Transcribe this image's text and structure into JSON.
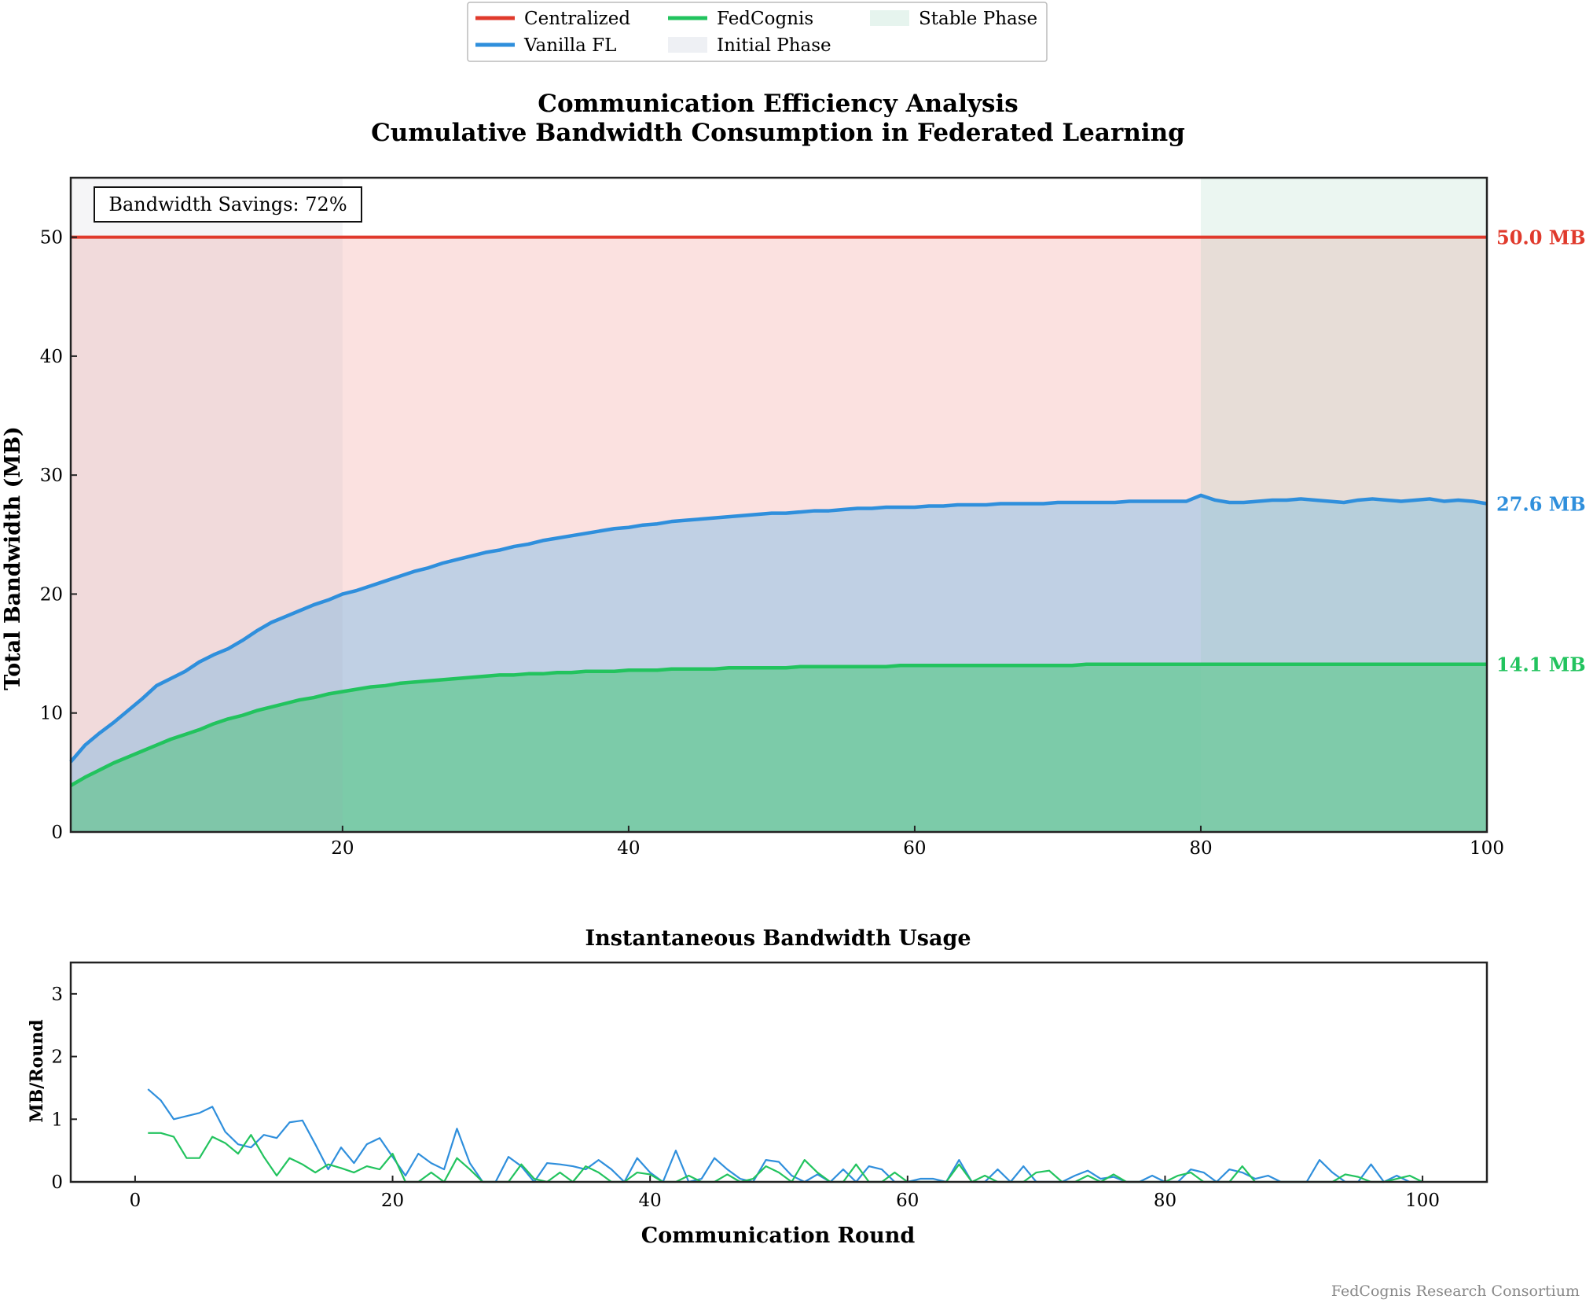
{
  "legend": {
    "items": [
      {
        "label": "Centralized",
        "kind": "line",
        "color": "#e03a2c"
      },
      {
        "label": "Vanilla FL",
        "kind": "line",
        "color": "#2f8fdc"
      },
      {
        "label": "FedCognis",
        "kind": "line",
        "color": "#22c35e"
      },
      {
        "label": "Initial Phase",
        "kind": "patch",
        "color": "#eef0f4"
      },
      {
        "label": "Stable Phase",
        "kind": "patch",
        "color": "#e6f4ee"
      }
    ]
  },
  "footer": "FedCognis Research Consortium",
  "colors": {
    "centralized": "#e03a2c",
    "vanilla": "#2f8fdc",
    "fedcognis": "#22c35e",
    "centralized_fill": "#fbe1e0",
    "vanilla_fill": "#c0d0e4",
    "fedcognis_fill": "#7ccba9",
    "initial_phase": "#eef0f4",
    "stable_phase": "#e6f4ee"
  },
  "chart_data": [
    {
      "type": "area",
      "title": "Communication Efficiency Analysis\nCumulative Bandwidth Consumption in Federated Learning",
      "title_lines": [
        "Communication Efficiency Analysis",
        "Cumulative Bandwidth Consumption in Federated Learning"
      ],
      "xlabel": "",
      "ylabel": "Total Bandwidth (MB)",
      "xlim": [
        1,
        100
      ],
      "ylim": [
        0,
        55
      ],
      "xticks": [
        20,
        40,
        60,
        80,
        100
      ],
      "yticks": [
        0,
        10,
        20,
        30,
        40,
        50
      ],
      "grid": false,
      "legend_position": "top-center",
      "annotation": "Bandwidth Savings: 72%",
      "phases": [
        {
          "name": "Initial Phase",
          "x": [
            1,
            20
          ]
        },
        {
          "name": "Stable Phase",
          "x": [
            80,
            100
          ]
        }
      ],
      "end_labels": [
        "50.0 MB",
        "27.6 MB",
        "14.1 MB"
      ],
      "series": [
        {
          "name": "Centralized",
          "constant": 50.0
        },
        {
          "name": "Vanilla FL",
          "values": [
            5.9,
            7.3,
            8.3,
            9.2,
            10.2,
            11.2,
            12.3,
            12.9,
            13.5,
            14.3,
            14.9,
            15.4,
            16.1,
            16.9,
            17.6,
            18.1,
            18.6,
            19.1,
            19.5,
            20.0,
            20.3,
            20.7,
            21.1,
            21.5,
            21.9,
            22.2,
            22.6,
            22.9,
            23.2,
            23.5,
            23.7,
            24.0,
            24.2,
            24.5,
            24.7,
            24.9,
            25.1,
            25.3,
            25.5,
            25.6,
            25.8,
            25.9,
            26.1,
            26.2,
            26.3,
            26.4,
            26.5,
            26.6,
            26.7,
            26.8,
            26.8,
            26.9,
            27.0,
            27.0,
            27.1,
            27.2,
            27.2,
            27.3,
            27.3,
            27.3,
            27.4,
            27.4,
            27.5,
            27.5,
            27.5,
            27.6,
            27.6,
            27.6,
            27.6,
            27.7,
            27.7,
            27.7,
            27.7,
            27.7,
            27.8,
            27.8,
            27.8,
            27.8,
            27.8,
            28.3,
            27.9,
            27.7,
            27.7,
            27.8,
            27.9,
            27.9,
            28.0,
            27.9,
            27.8,
            27.7,
            27.9,
            28.0,
            27.9,
            27.8,
            27.9,
            28.0,
            27.8,
            27.9,
            27.8,
            27.6
          ]
        },
        {
          "name": "FedCognis",
          "values": [
            3.9,
            4.6,
            5.2,
            5.8,
            6.3,
            6.8,
            7.3,
            7.8,
            8.2,
            8.6,
            9.1,
            9.5,
            9.8,
            10.2,
            10.5,
            10.8,
            11.1,
            11.3,
            11.6,
            11.8,
            12.0,
            12.2,
            12.3,
            12.5,
            12.6,
            12.7,
            12.8,
            12.9,
            13.0,
            13.1,
            13.2,
            13.2,
            13.3,
            13.3,
            13.4,
            13.4,
            13.5,
            13.5,
            13.5,
            13.6,
            13.6,
            13.6,
            13.7,
            13.7,
            13.7,
            13.7,
            13.8,
            13.8,
            13.8,
            13.8,
            13.8,
            13.9,
            13.9,
            13.9,
            13.9,
            13.9,
            13.9,
            13.9,
            14.0,
            14.0,
            14.0,
            14.0,
            14.0,
            14.0,
            14.0,
            14.0,
            14.0,
            14.0,
            14.0,
            14.0,
            14.0,
            14.1,
            14.1,
            14.1,
            14.1,
            14.1,
            14.1,
            14.1,
            14.1,
            14.1,
            14.1,
            14.1,
            14.1,
            14.1,
            14.1,
            14.1,
            14.1,
            14.1,
            14.1,
            14.1,
            14.1,
            14.1,
            14.1,
            14.1,
            14.1,
            14.1,
            14.1,
            14.1,
            14.1,
            14.1
          ]
        }
      ]
    },
    {
      "type": "line",
      "title": "Instantaneous Bandwidth Usage",
      "xlabel": "Communication Round",
      "ylabel": "MB/Round",
      "xlim": [
        -5,
        105
      ],
      "ylim": [
        0,
        3.5
      ],
      "xticks": [
        0,
        20,
        40,
        60,
        80,
        100
      ],
      "yticks": [
        0,
        1,
        2,
        3
      ],
      "grid": false,
      "series": [
        {
          "name": "Vanilla FL",
          "x_start": 1,
          "values": [
            1.48,
            1.3,
            1.0,
            1.05,
            1.1,
            1.2,
            0.8,
            0.6,
            0.55,
            0.75,
            0.7,
            0.95,
            0.98,
            0.6,
            0.2,
            0.55,
            0.3,
            0.6,
            0.7,
            0.4,
            0.1,
            0.45,
            0.3,
            0.2,
            0.85,
            0.3,
            0.0,
            0.0,
            0.4,
            0.25,
            0.0,
            0.3,
            0.28,
            0.25,
            0.2,
            0.35,
            0.2,
            0.0,
            0.38,
            0.15,
            0.0,
            0.5,
            0.0,
            0.05,
            0.38,
            0.2,
            0.05,
            0.0,
            0.35,
            0.32,
            0.1,
            0.0,
            0.12,
            0.0,
            0.2,
            0.0,
            0.25,
            0.2,
            0.0,
            0.0,
            0.05,
            0.05,
            0.0,
            0.35,
            0.0,
            0.0,
            0.2,
            0.0,
            0.25,
            0.0,
            0.0,
            0.0,
            0.1,
            0.18,
            0.05,
            0.08,
            0.0,
            0.0,
            0.1,
            0.0,
            0.0,
            0.2,
            0.15,
            0.0,
            0.2,
            0.15,
            0.05,
            0.1,
            0.0,
            0.0,
            0.0,
            0.35,
            0.15,
            0.0,
            0.0,
            0.28,
            0.0,
            0.1,
            0.0,
            0.0
          ]
        },
        {
          "name": "FedCognis",
          "x_start": 1,
          "values": [
            0.78,
            0.78,
            0.72,
            0.38,
            0.38,
            0.72,
            0.62,
            0.45,
            0.75,
            0.4,
            0.1,
            0.38,
            0.28,
            0.15,
            0.28,
            0.22,
            0.15,
            0.25,
            0.2,
            0.45,
            0.0,
            0.0,
            0.15,
            0.0,
            0.38,
            0.2,
            0.0,
            0.0,
            0.0,
            0.28,
            0.05,
            0.0,
            0.15,
            0.0,
            0.25,
            0.15,
            0.0,
            0.0,
            0.15,
            0.12,
            0.0,
            0.0,
            0.1,
            0.0,
            0.0,
            0.12,
            0.0,
            0.05,
            0.25,
            0.15,
            0.0,
            0.35,
            0.15,
            0.0,
            0.0,
            0.28,
            0.0,
            0.0,
            0.15,
            0.0,
            0.0,
            0.0,
            0.0,
            0.28,
            0.0,
            0.1,
            0.0,
            0.0,
            0.0,
            0.15,
            0.18,
            0.0,
            0.0,
            0.1,
            0.0,
            0.12,
            0.0,
            0.0,
            0.0,
            0.0,
            0.1,
            0.15,
            0.0,
            0.0,
            0.0,
            0.25,
            0.0,
            0.0,
            0.0,
            0.0,
            0.0,
            0.0,
            0.0,
            0.12,
            0.08,
            0.0,
            0.0,
            0.05,
            0.1,
            0.0
          ]
        }
      ]
    }
  ]
}
